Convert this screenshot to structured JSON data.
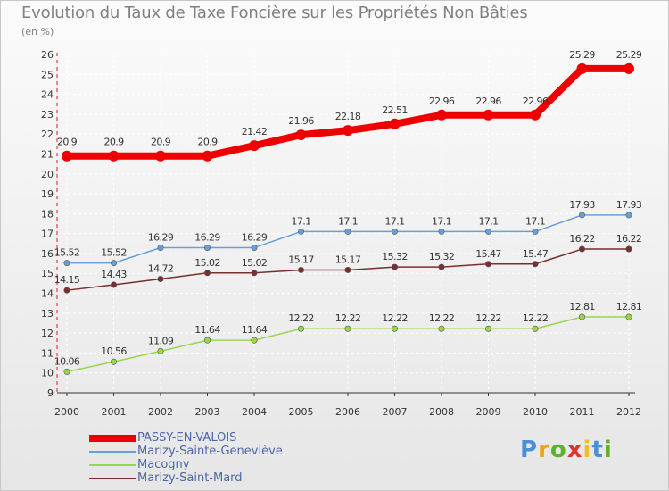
{
  "chart_data": {
    "type": "line",
    "title": "Evolution du Taux de Taxe Foncière sur les Propriétés Non Bâties",
    "subtitle": "(en %)",
    "xlabel": "",
    "ylabel": "(en %)",
    "categories": [
      "2000",
      "2001",
      "2002",
      "2003",
      "2004",
      "2005",
      "2006",
      "2007",
      "2008",
      "2009",
      "2010",
      "2011",
      "2012"
    ],
    "ylim": [
      9,
      26
    ],
    "yticks": [
      "9",
      "10",
      "11",
      "12",
      "13",
      "14",
      "15",
      "16",
      "17",
      "18",
      "19",
      "20",
      "21",
      "22",
      "23",
      "24",
      "25",
      "26"
    ],
    "series": [
      {
        "name": "PASSY-EN-VALOIS",
        "color": "#ee0000",
        "values": [
          20.9,
          20.9,
          20.9,
          20.9,
          21.42,
          21.96,
          22.18,
          22.51,
          22.96,
          22.96,
          22.96,
          25.29,
          25.29
        ],
        "labels": [
          "20.9",
          "20.9",
          "20.9",
          "20.9",
          "21.42",
          "21.96",
          "22.18",
          "22.51",
          "22.96",
          "22.96",
          "22.96",
          "25.29",
          "25.29"
        ]
      },
      {
        "name": "Marizy-Sainte-Geneviève",
        "color": "#6a9fd4",
        "values": [
          15.52,
          15.52,
          16.29,
          16.29,
          16.29,
          17.1,
          17.1,
          17.1,
          17.1,
          17.1,
          17.1,
          17.93,
          17.93
        ],
        "labels": [
          "15.52",
          "15.52",
          "16.29",
          "16.29",
          "16.29",
          "17.1",
          "17.1",
          "17.1",
          "17.1",
          "17.1",
          "17.1",
          "17.93",
          "17.93"
        ]
      },
      {
        "name": "Macogny",
        "color": "#99d64a",
        "values": [
          10.06,
          10.56,
          11.09,
          11.64,
          11.64,
          12.22,
          12.22,
          12.22,
          12.22,
          12.22,
          12.22,
          12.81,
          12.81
        ],
        "labels": [
          "10.06",
          "10.56",
          "11.09",
          "11.64",
          "11.64",
          "12.22",
          "12.22",
          "12.22",
          "12.22",
          "12.22",
          "12.22",
          "12.81",
          "12.81"
        ]
      },
      {
        "name": "Marizy-Saint-Mard",
        "color": "#7a2e2e",
        "values": [
          14.15,
          14.43,
          14.72,
          15.02,
          15.02,
          15.17,
          15.17,
          15.32,
          15.32,
          15.47,
          15.47,
          16.22,
          16.22
        ],
        "labels": [
          "14.15",
          "14.43",
          "14.72",
          "15.02",
          "15.02",
          "15.17",
          "15.17",
          "15.32",
          "15.32",
          "15.47",
          "15.47",
          "16.22",
          "16.22"
        ]
      }
    ]
  },
  "logo": {
    "letters": [
      "P",
      "r",
      "o",
      "x",
      "i",
      "t",
      "i"
    ],
    "colors": [
      "#4a90d9",
      "#f0a020",
      "#60b030",
      "#e03030",
      "#f0c020",
      "#4a90d9",
      "#60b030"
    ]
  }
}
